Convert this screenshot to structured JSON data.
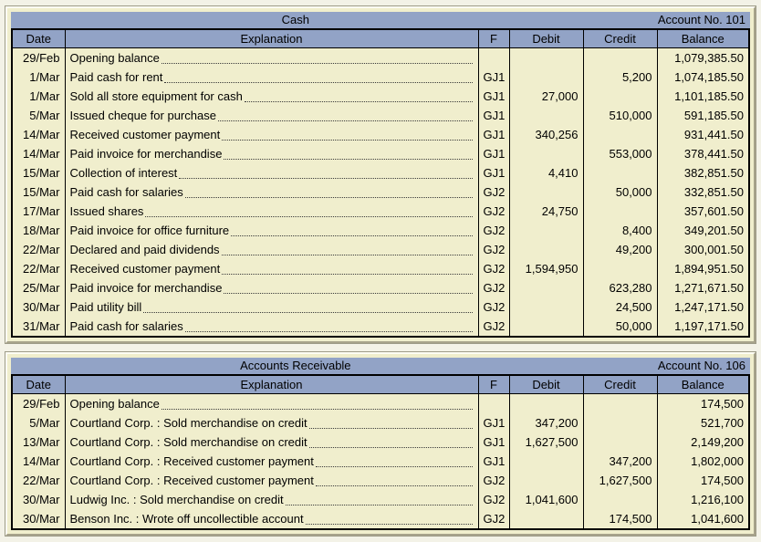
{
  "colors": {
    "header_blue": "#92a3c6",
    "body_yellow": "#f0eecd",
    "border_black": "#000000",
    "frame_highlight": "#fffef4",
    "frame_shadow": "#a7a38b"
  },
  "columns": [
    "Date",
    "Explanation",
    "F",
    "Debit",
    "Credit",
    "Balance"
  ],
  "ledgers": [
    {
      "title": "Cash",
      "account_no": "Account No. 101",
      "rows": [
        {
          "date": "29/Feb",
          "explanation": "Opening balance",
          "f": "",
          "debit": "",
          "credit": "",
          "balance": "1,079,385.50"
        },
        {
          "date": "1/Mar",
          "explanation": "Paid cash for rent",
          "f": "GJ1",
          "debit": "",
          "credit": "5,200",
          "balance": "1,074,185.50"
        },
        {
          "date": "1/Mar",
          "explanation": "Sold all store equipment for cash",
          "f": "GJ1",
          "debit": "27,000",
          "credit": "",
          "balance": "1,101,185.50"
        },
        {
          "date": "5/Mar",
          "explanation": "Issued cheque for purchase",
          "f": "GJ1",
          "debit": "",
          "credit": "510,000",
          "balance": "591,185.50"
        },
        {
          "date": "14/Mar",
          "explanation": "Received customer payment",
          "f": "GJ1",
          "debit": "340,256",
          "credit": "",
          "balance": "931,441.50"
        },
        {
          "date": "14/Mar",
          "explanation": "Paid invoice for merchandise",
          "f": "GJ1",
          "debit": "",
          "credit": "553,000",
          "balance": "378,441.50"
        },
        {
          "date": "15/Mar",
          "explanation": "Collection of interest",
          "f": "GJ1",
          "debit": "4,410",
          "credit": "",
          "balance": "382,851.50"
        },
        {
          "date": "15/Mar",
          "explanation": "Paid cash for salaries",
          "f": "GJ2",
          "debit": "",
          "credit": "50,000",
          "balance": "332,851.50"
        },
        {
          "date": "17/Mar",
          "explanation": "Issued shares",
          "f": "GJ2",
          "debit": "24,750",
          "credit": "",
          "balance": "357,601.50"
        },
        {
          "date": "18/Mar",
          "explanation": "Paid invoice for office furniture",
          "f": "GJ2",
          "debit": "",
          "credit": "8,400",
          "balance": "349,201.50"
        },
        {
          "date": "22/Mar",
          "explanation": "Declared and paid dividends",
          "f": "GJ2",
          "debit": "",
          "credit": "49,200",
          "balance": "300,001.50"
        },
        {
          "date": "22/Mar",
          "explanation": "Received customer payment",
          "f": "GJ2",
          "debit": "1,594,950",
          "credit": "",
          "balance": "1,894,951.50"
        },
        {
          "date": "25/Mar",
          "explanation": "Paid invoice for merchandise",
          "f": "GJ2",
          "debit": "",
          "credit": "623,280",
          "balance": "1,271,671.50"
        },
        {
          "date": "30/Mar",
          "explanation": "Paid utility bill",
          "f": "GJ2",
          "debit": "",
          "credit": "24,500",
          "balance": "1,247,171.50"
        },
        {
          "date": "31/Mar",
          "explanation": "Paid cash for salaries",
          "f": "GJ2",
          "debit": "",
          "credit": "50,000",
          "balance": "1,197,171.50"
        }
      ]
    },
    {
      "title": "Accounts Receivable",
      "account_no": "Account No. 106",
      "rows": [
        {
          "date": "29/Feb",
          "explanation": "Opening balance",
          "f": "",
          "debit": "",
          "credit": "",
          "balance": "174,500"
        },
        {
          "date": "5/Mar",
          "explanation": "Courtland Corp. : Sold merchandise on credit",
          "f": "GJ1",
          "debit": "347,200",
          "credit": "",
          "balance": "521,700"
        },
        {
          "date": "13/Mar",
          "explanation": "Courtland Corp. : Sold merchandise on credit",
          "f": "GJ1",
          "debit": "1,627,500",
          "credit": "",
          "balance": "2,149,200"
        },
        {
          "date": "14/Mar",
          "explanation": "Courtland Corp. : Received customer payment",
          "f": "GJ1",
          "debit": "",
          "credit": "347,200",
          "balance": "1,802,000"
        },
        {
          "date": "22/Mar",
          "explanation": "Courtland Corp. : Received customer payment",
          "f": "GJ2",
          "debit": "",
          "credit": "1,627,500",
          "balance": "174,500"
        },
        {
          "date": "30/Mar",
          "explanation": "Ludwig Inc. : Sold merchandise on credit",
          "f": "GJ2",
          "debit": "1,041,600",
          "credit": "",
          "balance": "1,216,100"
        },
        {
          "date": "30/Mar",
          "explanation": "Benson Inc. : Wrote off uncollectible account",
          "f": "GJ2",
          "debit": "",
          "credit": "174,500",
          "balance": "1,041,600"
        }
      ]
    }
  ]
}
